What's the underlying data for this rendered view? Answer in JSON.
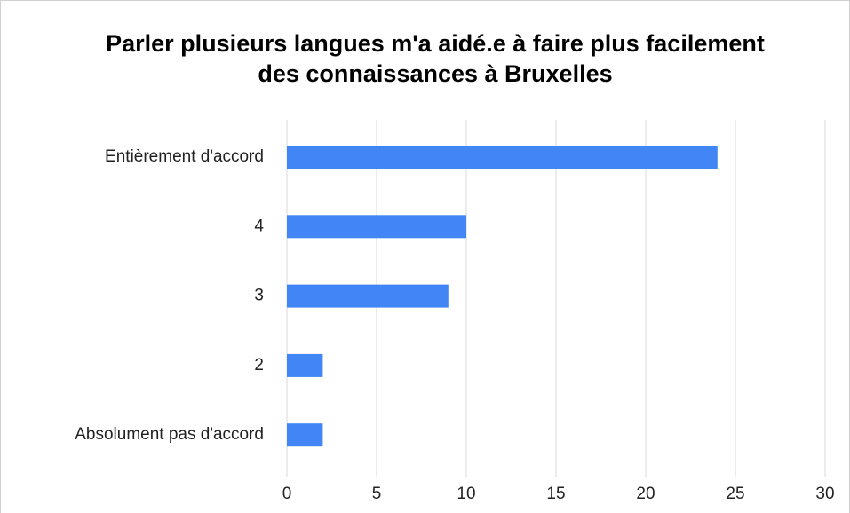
{
  "chart_data": {
    "type": "bar",
    "orientation": "horizontal",
    "title": "Parler plusieurs langues m'a aidé.e à faire plus facilement des connaissances à Bruxelles",
    "categories": [
      "Entièrement d'accord",
      "4",
      "3",
      "2",
      "Absolument pas d'accord"
    ],
    "values": [
      24,
      10,
      9,
      2,
      2
    ],
    "color": "#4285f4",
    "xlim": [
      0,
      30
    ],
    "xticks": [
      0,
      5,
      10,
      15,
      20,
      25,
      30
    ],
    "grid": true
  }
}
